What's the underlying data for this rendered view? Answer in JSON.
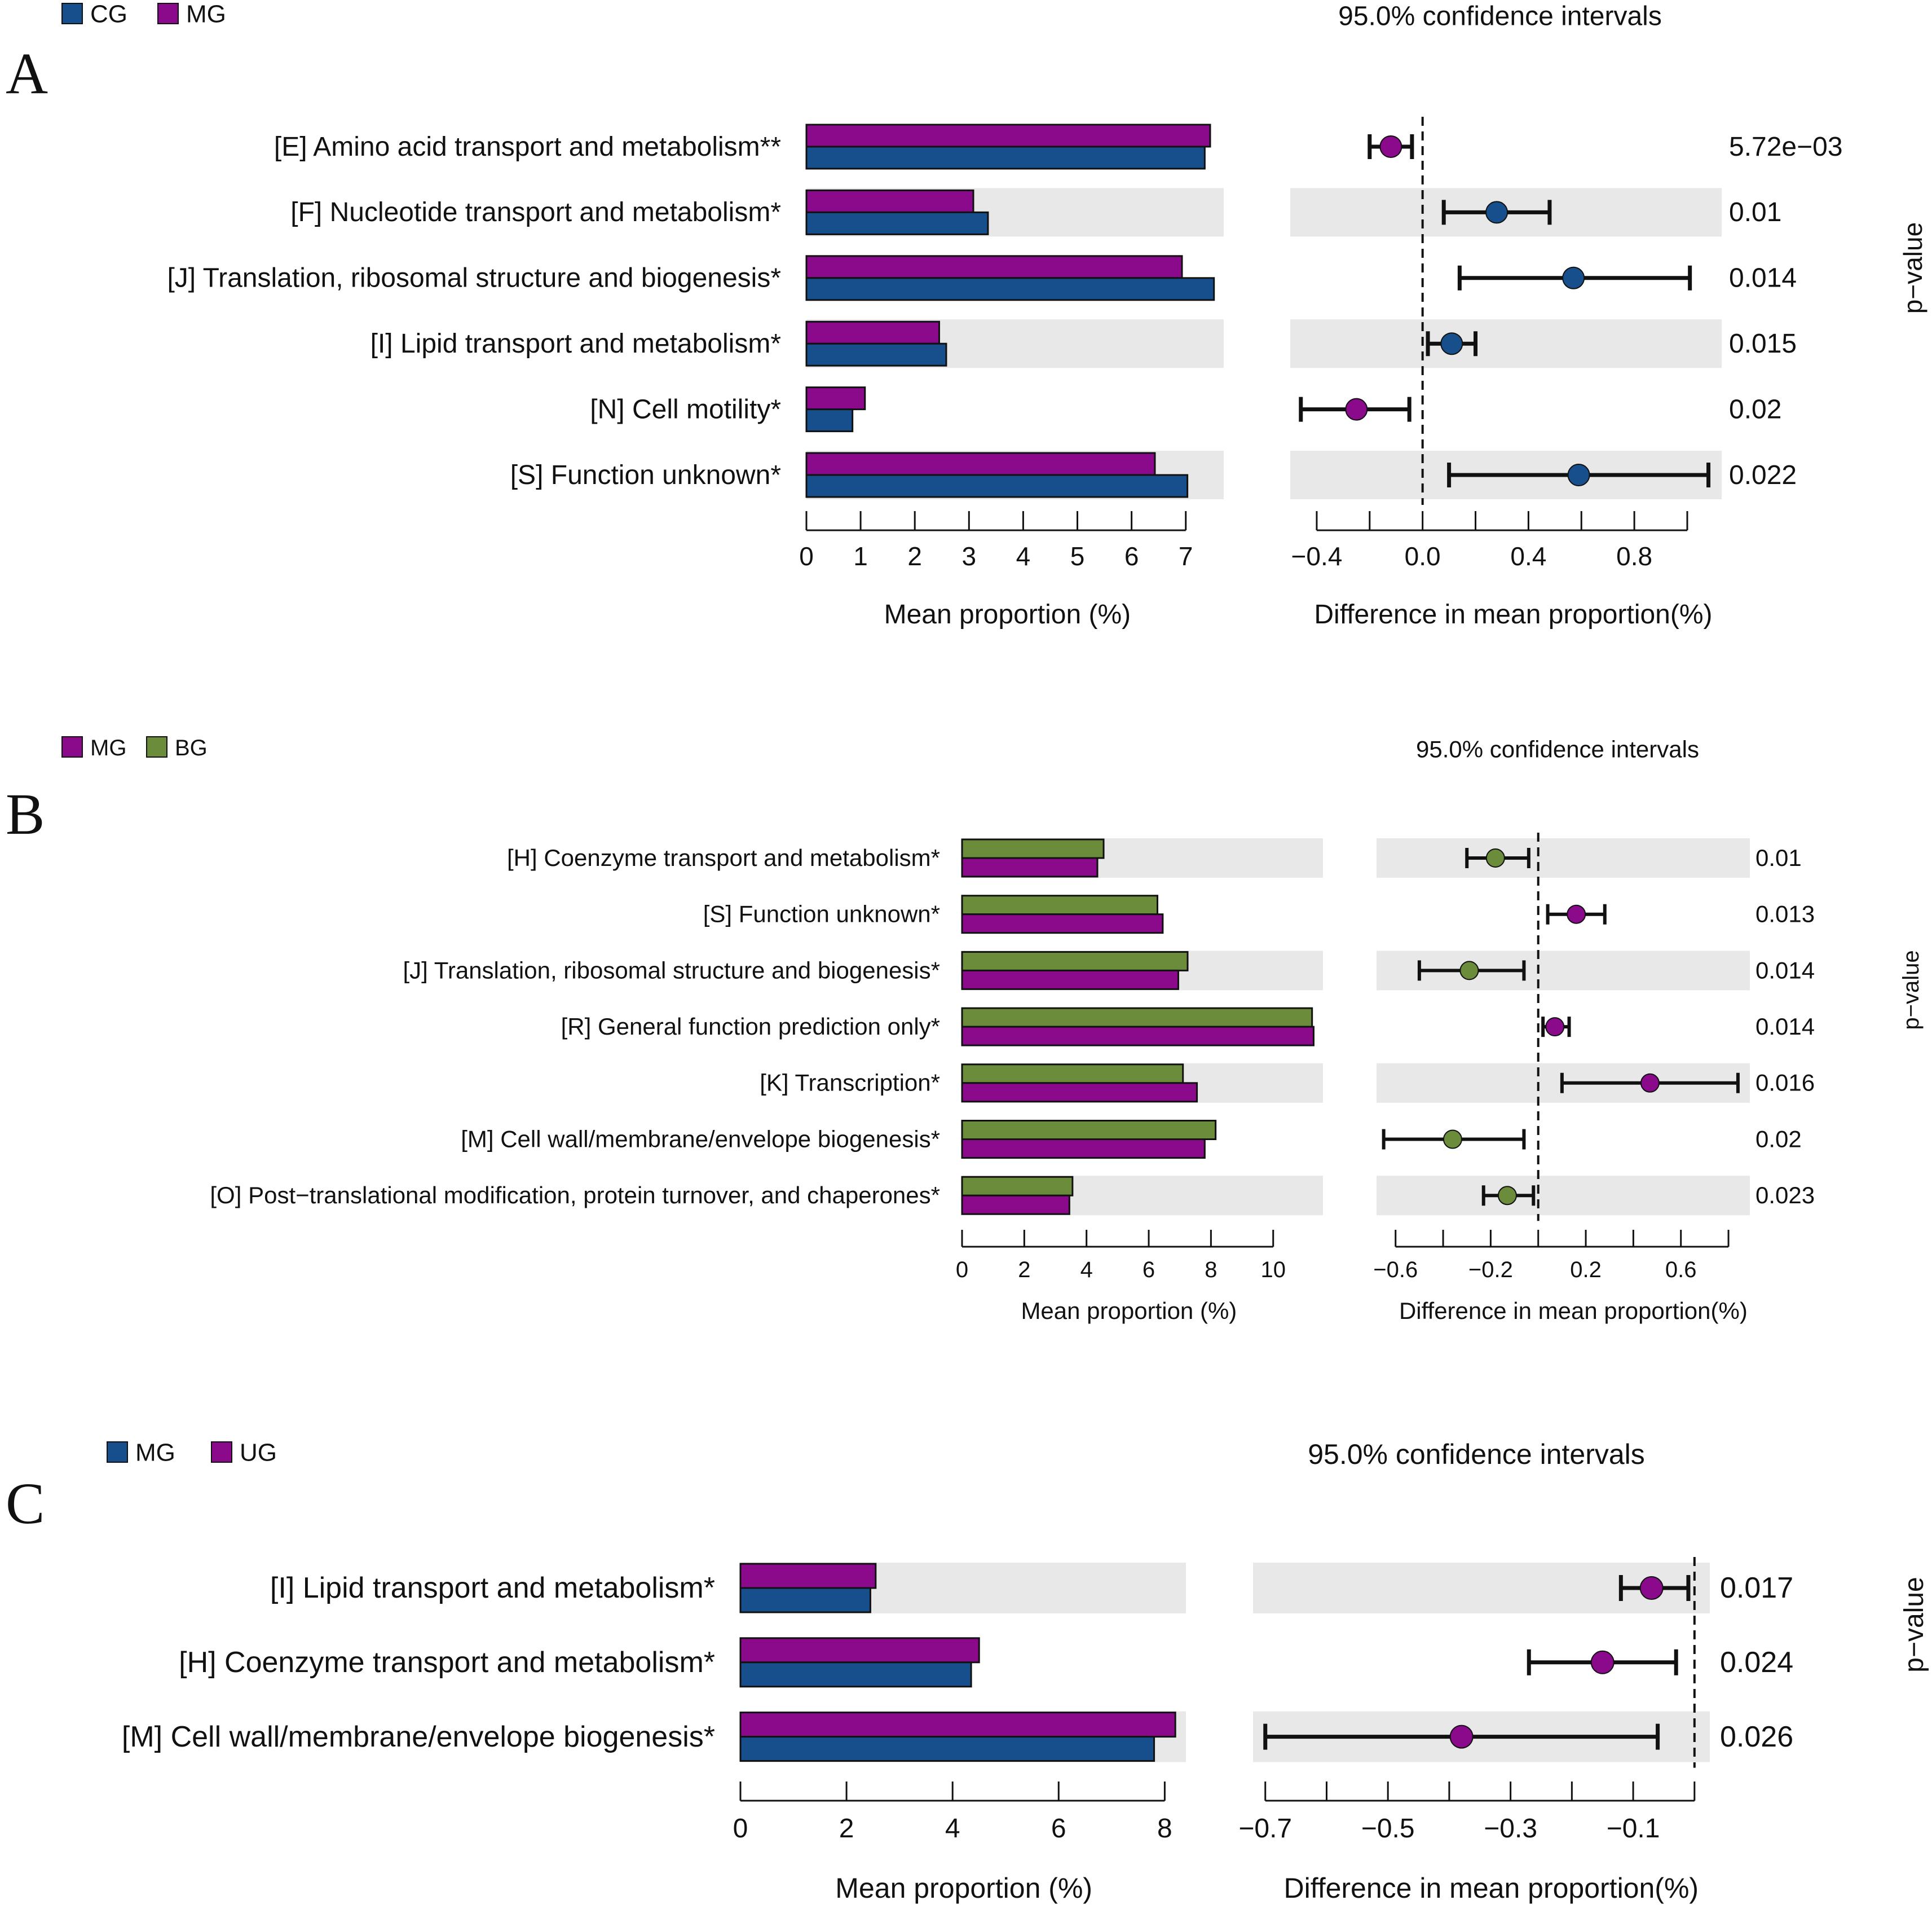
{
  "colors": {
    "blue": "#164F8C",
    "purple": "#8B0A8C",
    "green": "#6B8C3A",
    "band": "#E8E8E8"
  },
  "chart_data": [
    {
      "panel": "A",
      "type": "bar",
      "ci_title": "95.0% confidence intervals",
      "legend": [
        {
          "name": "CG",
          "color": "blue"
        },
        {
          "name": "MG",
          "color": "purple"
        }
      ],
      "bar_xlabel": "Mean proportion (%)",
      "bar_xticks": [
        "0",
        "1",
        "2",
        "3",
        "4",
        "5",
        "6",
        "7"
      ],
      "bar_xlim": [
        0,
        7.7
      ],
      "diff_xlabel": "Difference in mean proportion(%)",
      "diff_xticks": [
        -0.4,
        -0.2,
        0.0,
        0.2,
        0.4,
        0.6,
        0.8,
        1.0
      ],
      "diff_xtick_labels": [
        "−0.4",
        "",
        "0.0",
        "",
        "0.4",
        "",
        "0.8",
        ""
      ],
      "diff_xlim": [
        -0.5,
        1.13
      ],
      "pvalue_label": "p−value",
      "categories": [
        "[E] Amino acid transport and metabolism**",
        "[F] Nucleotide transport and metabolism*",
        "[J] Translation, ribosomal structure and biogenesis*",
        "[I] Lipid transport and metabolism*",
        "[N] Cell motility*",
        "[S] Function unknown*"
      ],
      "series": [
        {
          "name": "MG",
          "values": [
            7.45,
            3.08,
            6.93,
            2.45,
            1.08,
            6.43
          ]
        },
        {
          "name": "CG",
          "values": [
            7.35,
            3.35,
            7.52,
            2.58,
            0.85,
            7.03
          ]
        }
      ],
      "diff": [
        {
          "mean": -0.12,
          "low": -0.2,
          "high": -0.04,
          "group": "MG"
        },
        {
          "mean": 0.28,
          "low": 0.08,
          "high": 0.48,
          "group": "CG"
        },
        {
          "mean": 0.57,
          "low": 0.14,
          "high": 1.01,
          "group": "CG"
        },
        {
          "mean": 0.11,
          "low": 0.02,
          "high": 0.2,
          "group": "CG"
        },
        {
          "mean": -0.25,
          "low": -0.46,
          "high": -0.05,
          "group": "MG"
        },
        {
          "mean": 0.59,
          "low": 0.1,
          "high": 1.08,
          "group": "CG"
        }
      ],
      "pvalues": [
        "5.72e−03",
        "0.01",
        "0.014",
        "0.015",
        "0.02",
        "0.022"
      ]
    },
    {
      "panel": "B",
      "type": "bar",
      "ci_title": "95.0% confidence intervals",
      "legend": [
        {
          "name": "MG",
          "color": "purple"
        },
        {
          "name": "BG",
          "color": "green"
        }
      ],
      "bar_xlabel": "Mean proportion (%)",
      "bar_xticks": [
        "0",
        "2",
        "4",
        "6",
        "8",
        "10"
      ],
      "bar_xlim": [
        0,
        11.6
      ],
      "diff_xlabel": "Difference in mean proportion(%)",
      "diff_xticks": [
        -0.6,
        -0.4,
        -0.2,
        0.0,
        0.2,
        0.4,
        0.6,
        0.8
      ],
      "diff_xtick_labels": [
        "−0.6",
        "",
        "−0.2",
        "",
        "0.2",
        "",
        "0.6",
        ""
      ],
      "diff_xlim": [
        -0.68,
        0.89
      ],
      "pvalue_label": "p−value",
      "categories": [
        "[H] Coenzyme transport and metabolism*",
        "[S] Function unknown*",
        "[J] Translation, ribosomal structure and biogenesis*",
        "[R] General function prediction only*",
        "[K] Transcription*",
        "[M] Cell wall/membrane/envelope biogenesis*",
        "[O] Post−translational modification, protein turnover, and chaperones*"
      ],
      "series": [
        {
          "name": "BG",
          "values": [
            4.55,
            6.28,
            7.25,
            11.25,
            7.1,
            8.15,
            3.55
          ]
        },
        {
          "name": "MG",
          "values": [
            4.35,
            6.45,
            6.95,
            11.3,
            7.55,
            7.8,
            3.45
          ]
        }
      ],
      "diff": [
        {
          "mean": -0.18,
          "low": -0.3,
          "high": -0.04,
          "group": "BG"
        },
        {
          "mean": 0.16,
          "low": 0.04,
          "high": 0.28,
          "group": "MG"
        },
        {
          "mean": -0.29,
          "low": -0.5,
          "high": -0.06,
          "group": "BG"
        },
        {
          "mean": 0.07,
          "low": 0.02,
          "high": 0.13,
          "group": "MG"
        },
        {
          "mean": 0.47,
          "low": 0.1,
          "high": 0.84,
          "group": "MG"
        },
        {
          "mean": -0.36,
          "low": -0.65,
          "high": -0.06,
          "group": "BG"
        },
        {
          "mean": -0.13,
          "low": -0.23,
          "high": -0.02,
          "group": "BG"
        }
      ],
      "pvalues": [
        "0.01",
        "0.013",
        "0.014",
        "0.014",
        "0.016",
        "0.02",
        "0.023"
      ]
    },
    {
      "panel": "C",
      "type": "bar",
      "ci_title": "95.0% confidence intervals",
      "legend": [
        {
          "name": "MG",
          "color": "blue"
        },
        {
          "name": "UG",
          "color": "purple"
        }
      ],
      "bar_xlabel": "Mean proportion (%)",
      "bar_xticks": [
        "0",
        "2",
        "4",
        "6",
        "8"
      ],
      "bar_xlim": [
        0,
        8.4
      ],
      "diff_xlabel": "Difference in mean proportion(%)",
      "diff_xticks": [
        -0.7,
        -0.6,
        -0.5,
        -0.4,
        -0.3,
        -0.2,
        -0.1,
        0.0
      ],
      "diff_xtick_labels": [
        "−0.7",
        "",
        "−0.5",
        "",
        "−0.3",
        "",
        "−0.1",
        ""
      ],
      "diff_xlim": [
        -0.72,
        0.025
      ],
      "pvalue_label": "p−value",
      "categories": [
        "[I] Lipid transport and metabolism*",
        "[H] Coenzyme transport and metabolism*",
        "[M] Cell wall/membrane/envelope biogenesis*"
      ],
      "series": [
        {
          "name": "UG",
          "values": [
            2.55,
            4.5,
            8.2
          ]
        },
        {
          "name": "MG",
          "values": [
            2.45,
            4.35,
            7.8
          ]
        }
      ],
      "diff": [
        {
          "mean": -0.07,
          "low": -0.12,
          "high": -0.01,
          "group": "UG"
        },
        {
          "mean": -0.15,
          "low": -0.27,
          "high": -0.03,
          "group": "UG"
        },
        {
          "mean": -0.38,
          "low": -0.7,
          "high": -0.06,
          "group": "UG"
        }
      ],
      "pvalues": [
        "0.017",
        "0.024",
        "0.026"
      ]
    }
  ]
}
